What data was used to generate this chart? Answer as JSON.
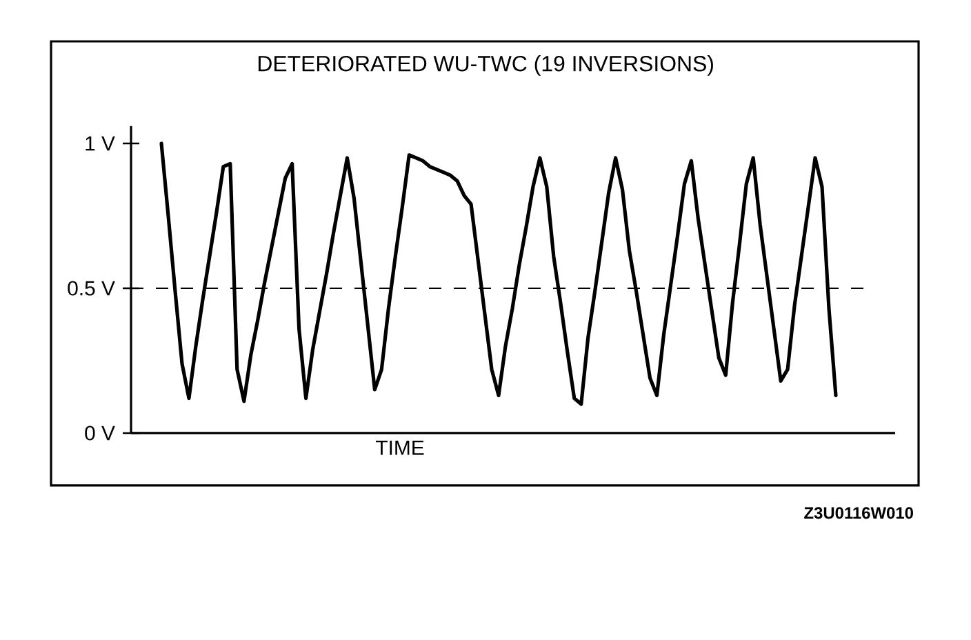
{
  "chart_data": {
    "type": "line",
    "title": "DETERIORATED WU-TWC (19 INVERSIONS)",
    "xlabel": "TIME",
    "annotations": [
      "Z3U0116W010"
    ],
    "categories": [
      null,
      null,
      null,
      null,
      null,
      null,
      null,
      null,
      null,
      null,
      null,
      null,
      null,
      null,
      null,
      null,
      null,
      null,
      null,
      null,
      null,
      null,
      null,
      null,
      null,
      null,
      null,
      null,
      null,
      null,
      null,
      null,
      null,
      null,
      null,
      null,
      null,
      null,
      null,
      null,
      null,
      null,
      null,
      null,
      null,
      null,
      null,
      null,
      null,
      null,
      null,
      null,
      null,
      null,
      null,
      null,
      null,
      null,
      null,
      null,
      null,
      null,
      null,
      null,
      null,
      null,
      null,
      null,
      null,
      null,
      null,
      null,
      null,
      null,
      null,
      null,
      null,
      null,
      null,
      null,
      null,
      null,
      null,
      null,
      null,
      null,
      null,
      null,
      null,
      null,
      null,
      null,
      null,
      null,
      null,
      null,
      null,
      null,
      null
    ],
    "ylim": [
      0,
      1.06
    ],
    "yticks": [
      {
        "value": 0,
        "label": "0 V"
      },
      {
        "value": 0.5,
        "label": "0.5 V"
      },
      {
        "value": 1,
        "label": "1 V"
      }
    ],
    "tick_labels": "y",
    "ref_lines": [
      {
        "axis": "y",
        "value": 0.5,
        "line_style": "dashed",
        "color": "#000000"
      }
    ],
    "series": [
      {
        "color": "#000000",
        "values": [
          1.0,
          0.75,
          0.49,
          0.24,
          0.12,
          0.3,
          0.46,
          0.61,
          0.76,
          0.92,
          0.93,
          0.22,
          0.11,
          0.27,
          0.39,
          0.52,
          0.64,
          0.76,
          0.88,
          0.93,
          0.36,
          0.12,
          0.29,
          0.42,
          0.55,
          0.69,
          0.82,
          0.95,
          0.81,
          0.59,
          0.37,
          0.15,
          0.22,
          0.43,
          0.61,
          0.78,
          0.96,
          0.95,
          0.94,
          0.92,
          0.91,
          0.9,
          0.89,
          0.87,
          0.82,
          0.79,
          0.6,
          0.41,
          0.22,
          0.13,
          0.3,
          0.43,
          0.58,
          0.71,
          0.85,
          0.95,
          0.85,
          0.61,
          0.45,
          0.28,
          0.12,
          0.1,
          0.33,
          0.49,
          0.66,
          0.83,
          0.95,
          0.84,
          0.63,
          0.49,
          0.34,
          0.19,
          0.13,
          0.34,
          0.51,
          0.68,
          0.86,
          0.94,
          0.74,
          0.58,
          0.42,
          0.26,
          0.2,
          0.45,
          0.65,
          0.86,
          0.95,
          0.72,
          0.54,
          0.36,
          0.18,
          0.22,
          0.44,
          0.61,
          0.78,
          0.95,
          0.85,
          0.43,
          0.13
        ]
      }
    ],
    "grid": false,
    "marker": "none",
    "line_style": "solid"
  }
}
